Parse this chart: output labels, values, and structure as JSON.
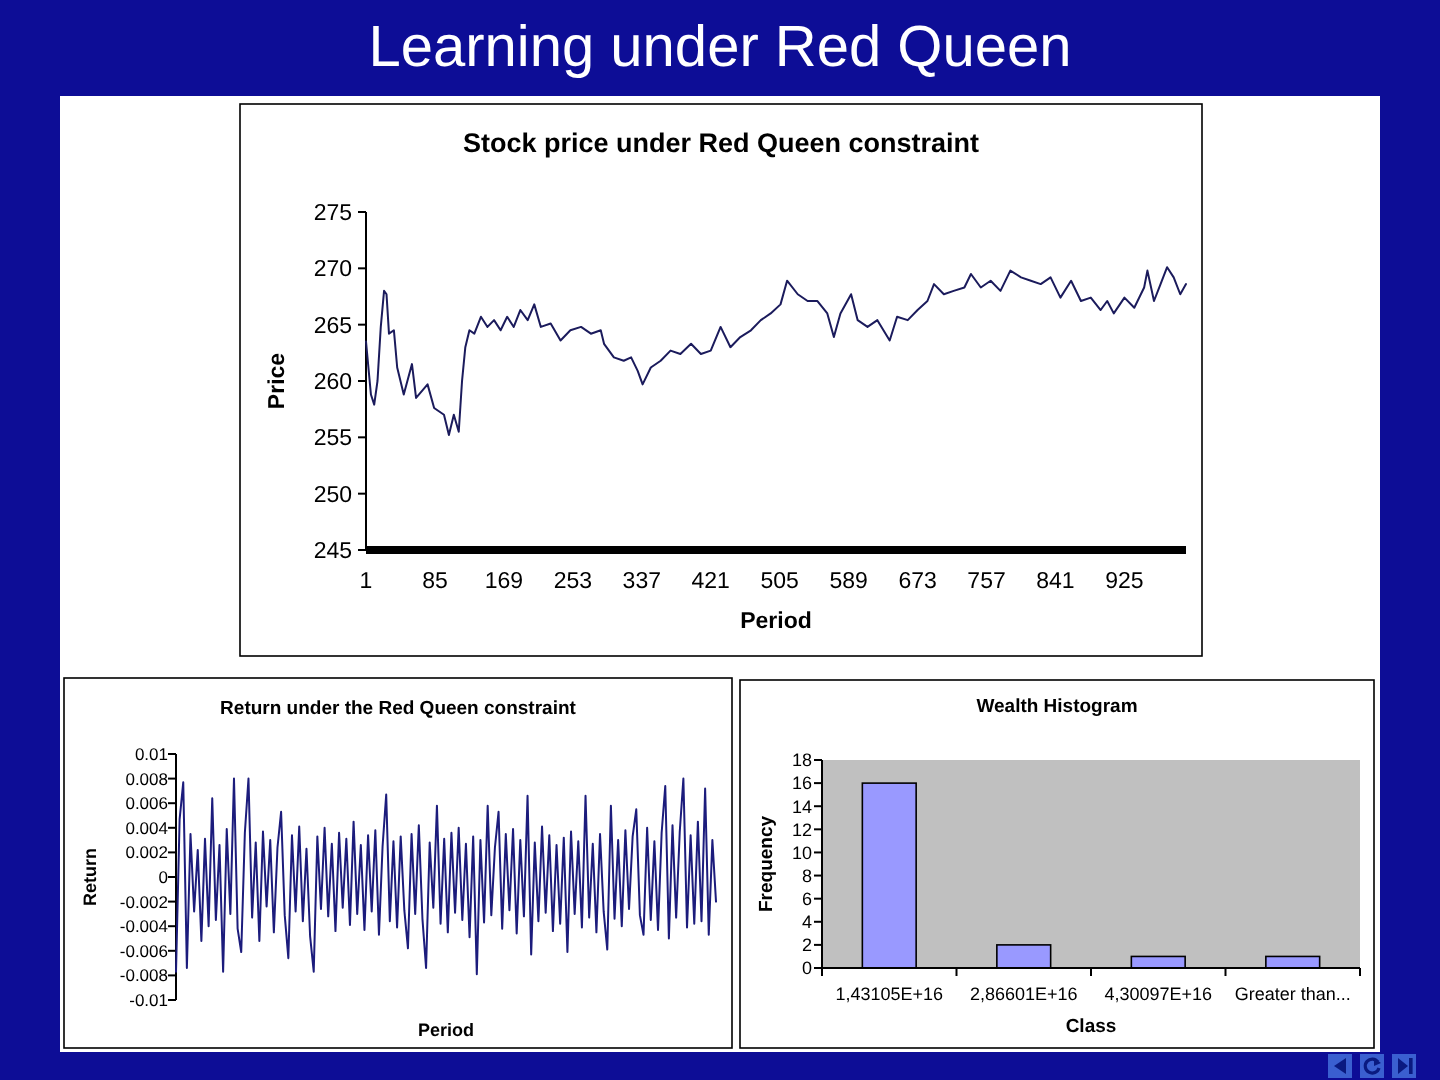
{
  "chart_data": [
    {
      "type": "other",
      "title": "Learning under Red Queen"
    },
    {
      "type": "line",
      "title": "Stock price under Red Queen constraint",
      "xlabel": "Period",
      "ylabel": "Price",
      "color": "#1b1b5c",
      "x": [
        1,
        7,
        11,
        15,
        19,
        23,
        26,
        29,
        35,
        39,
        47,
        57,
        62,
        76,
        84,
        96,
        102,
        108,
        114,
        118,
        122,
        127,
        133,
        141,
        149,
        157,
        165,
        173,
        181,
        189,
        198,
        206,
        214,
        226,
        238,
        250,
        263,
        275,
        287,
        291,
        303,
        315,
        324,
        332,
        338,
        348,
        360,
        372,
        384,
        397,
        409,
        421,
        433,
        445,
        457,
        470,
        482,
        494,
        506,
        514,
        527,
        539,
        551,
        563,
        571,
        579,
        592,
        600,
        612,
        624,
        639,
        648,
        661,
        673,
        685,
        693,
        705,
        717,
        730,
        738,
        750,
        762,
        774,
        786,
        799,
        811,
        823,
        835,
        847,
        860,
        872,
        884,
        896,
        904,
        912,
        925,
        937,
        949,
        953,
        961,
        969,
        977,
        985,
        993,
        1000
      ],
      "values": [
        263.5,
        258.8,
        257.9,
        260.0,
        264.8,
        268.0,
        267.7,
        264.2,
        264.5,
        261.2,
        258.8,
        261.5,
        258.5,
        259.7,
        257.6,
        257.0,
        255.2,
        257.0,
        255.5,
        260.0,
        263.0,
        264.5,
        264.2,
        265.7,
        264.8,
        265.4,
        264.5,
        265.7,
        264.8,
        266.3,
        265.4,
        266.8,
        264.8,
        265.1,
        263.6,
        264.5,
        264.8,
        264.2,
        264.5,
        263.3,
        262.1,
        261.8,
        262.1,
        260.9,
        259.7,
        261.2,
        261.8,
        262.7,
        262.4,
        263.3,
        262.4,
        262.7,
        264.8,
        263.0,
        263.9,
        264.5,
        265.4,
        266.0,
        266.8,
        268.9,
        267.7,
        267.1,
        267.1,
        266.0,
        263.9,
        266.0,
        267.7,
        265.4,
        264.8,
        265.4,
        263.6,
        265.7,
        265.4,
        266.3,
        267.1,
        268.6,
        267.7,
        268.0,
        268.3,
        269.5,
        268.3,
        268.9,
        268.0,
        269.8,
        269.2,
        268.9,
        268.6,
        269.2,
        267.4,
        268.9,
        267.1,
        267.4,
        266.3,
        267.1,
        266.0,
        267.4,
        266.5,
        268.3,
        269.8,
        267.1,
        268.6,
        270.1,
        269.2,
        267.7,
        268.6
      ],
      "xlim": [
        1,
        1000
      ],
      "xticks": [
        1,
        85,
        169,
        253,
        337,
        421,
        505,
        589,
        673,
        757,
        841,
        925
      ],
      "ylim": [
        245,
        275
      ],
      "yticks": [
        245,
        250,
        255,
        260,
        265,
        270,
        275
      ]
    },
    {
      "type": "line",
      "title": "Return under the Red Queen constraint",
      "xlabel": "Period",
      "ylabel": "Return",
      "color": "#1c1c7c",
      "tick_labels": "y",
      "categories": [
        null,
        null,
        null,
        null,
        null,
        null,
        null,
        null,
        null,
        null,
        null,
        null,
        null,
        null,
        null,
        null,
        null,
        null,
        null,
        null,
        null,
        null,
        null,
        null,
        null,
        null,
        null,
        null,
        null,
        null,
        null,
        null,
        null,
        null,
        null,
        null,
        null,
        null,
        null,
        null,
        null,
        null,
        null,
        null,
        null,
        null,
        null,
        null,
        null,
        null,
        null,
        null,
        null,
        null,
        null,
        null,
        null,
        null,
        null,
        null,
        null,
        null,
        null,
        null,
        null,
        null,
        null,
        null,
        null,
        null,
        null,
        null,
        null,
        null,
        null,
        null,
        null,
        null,
        null,
        null,
        null,
        null,
        null,
        null,
        null,
        null,
        null,
        null,
        null,
        null,
        null,
        null,
        null,
        null,
        null,
        null,
        null,
        null,
        null,
        null,
        null,
        null,
        null,
        null,
        null,
        null,
        null,
        null,
        null,
        null,
        null,
        null,
        null,
        null,
        null,
        null,
        null,
        null,
        null,
        null,
        null,
        null,
        null,
        null,
        null,
        null,
        null,
        null,
        null,
        null,
        null,
        null,
        null,
        null,
        null,
        null,
        null,
        null,
        null,
        null,
        null,
        null,
        null,
        null,
        null,
        null,
        null,
        null,
        null,
        null
      ],
      "values": [
        -0.0077,
        0.0047,
        0.0077,
        -0.0074,
        0.0035,
        -0.0028,
        0.0022,
        -0.0052,
        0.0031,
        -0.004,
        0.0064,
        -0.0035,
        0.0026,
        -0.0077,
        0.0039,
        -0.003,
        0.008,
        -0.0042,
        -0.0061,
        0.0036,
        0.008,
        -0.0033,
        0.0028,
        -0.0052,
        0.0037,
        -0.0024,
        0.003,
        -0.0045,
        0.0024,
        0.0053,
        -0.0031,
        -0.0066,
        0.0034,
        -0.0028,
        0.0041,
        -0.0036,
        0.0023,
        -0.0048,
        -0.0077,
        0.0033,
        -0.0026,
        0.004,
        -0.0032,
        0.0027,
        -0.0044,
        0.0036,
        -0.0025,
        0.0031,
        -0.0039,
        0.0045,
        -0.003,
        0.0026,
        -0.0043,
        0.0034,
        -0.0028,
        0.0038,
        -0.0047,
        0.0025,
        0.0067,
        -0.0036,
        0.0029,
        -0.0041,
        0.0033,
        -0.0027,
        -0.0058,
        0.0035,
        -0.003,
        0.0042,
        -0.0034,
        -0.0074,
        0.0028,
        -0.0025,
        0.0058,
        -0.0038,
        0.0031,
        -0.0045,
        0.0036,
        -0.0029,
        0.004,
        -0.0035,
        0.0027,
        -0.0049,
        0.0033,
        -0.0079,
        0.003,
        -0.0037,
        0.0058,
        -0.0031,
        0.0024,
        0.0053,
        -0.0042,
        0.0035,
        -0.0027,
        0.0039,
        -0.0046,
        0.003,
        -0.0032,
        0.0066,
        -0.0063,
        0.0028,
        -0.0036,
        0.0041,
        -0.0029,
        0.0034,
        -0.0044,
        0.0026,
        -0.0038,
        0.0032,
        -0.0061,
        0.0037,
        -0.003,
        0.0029,
        -0.0041,
        0.0066,
        -0.0033,
        0.0027,
        -0.0045,
        0.0035,
        -0.0028,
        -0.0059,
        0.0058,
        -0.0034,
        0.003,
        -0.004,
        0.0038,
        -0.0026,
        0.0033,
        0.0055,
        -0.0031,
        -0.0047,
        0.004,
        -0.0035,
        0.0029,
        -0.0043,
        0.0036,
        0.0074,
        -0.005,
        0.0042,
        -0.0033,
        0.0037,
        0.008,
        -0.0041,
        0.0034,
        -0.0038,
        0.0045,
        -0.0036,
        0.0072,
        -0.0047,
        0.003,
        -0.002
      ],
      "ylim": [
        -0.01,
        0.01
      ],
      "yticks": [
        -0.01,
        -0.008,
        -0.006,
        -0.004,
        -0.002,
        0,
        0.002,
        0.004,
        0.006,
        0.008,
        0.01
      ]
    },
    {
      "type": "bar",
      "title": "Wealth Histogram",
      "xlabel": "Class",
      "ylabel": "Frequency",
      "categories": [
        "1,43105E+16",
        "2,86601E+16",
        "4,30097E+16",
        "Greater than..."
      ],
      "values": [
        16,
        2,
        1,
        1
      ],
      "color": "#9999ff",
      "ylim": [
        0,
        18
      ],
      "yticks": [
        0,
        2,
        4,
        6,
        8,
        10,
        12,
        14,
        16,
        18
      ]
    }
  ]
}
